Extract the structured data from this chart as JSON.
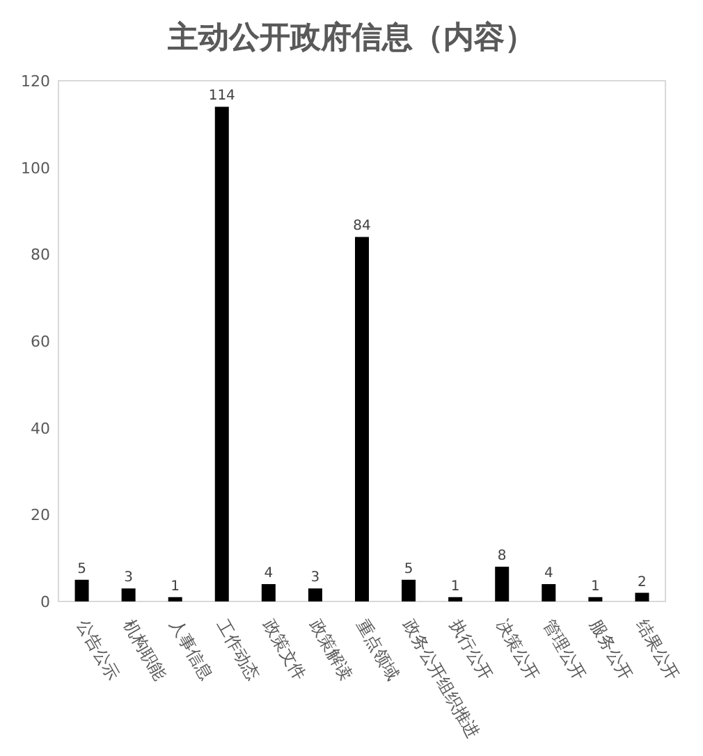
{
  "chart_data": {
    "type": "bar",
    "title": "主动公开政府信息（内容）",
    "categories": [
      "公告公示",
      "机构职能",
      "人事信息",
      "工作动态",
      "政策文件",
      "政策解读",
      "重点领域",
      "政务公开组织推进",
      "执行公开",
      "决策公开",
      "管理公开",
      "服务公开",
      "结果公开"
    ],
    "values": [
      5,
      3,
      1,
      114,
      4,
      3,
      84,
      5,
      1,
      8,
      4,
      1,
      2
    ],
    "color": "#000000",
    "ylim": [
      0,
      120
    ],
    "yticks": [
      0,
      20,
      40,
      60,
      80,
      100,
      120
    ],
    "data_labels": true
  }
}
